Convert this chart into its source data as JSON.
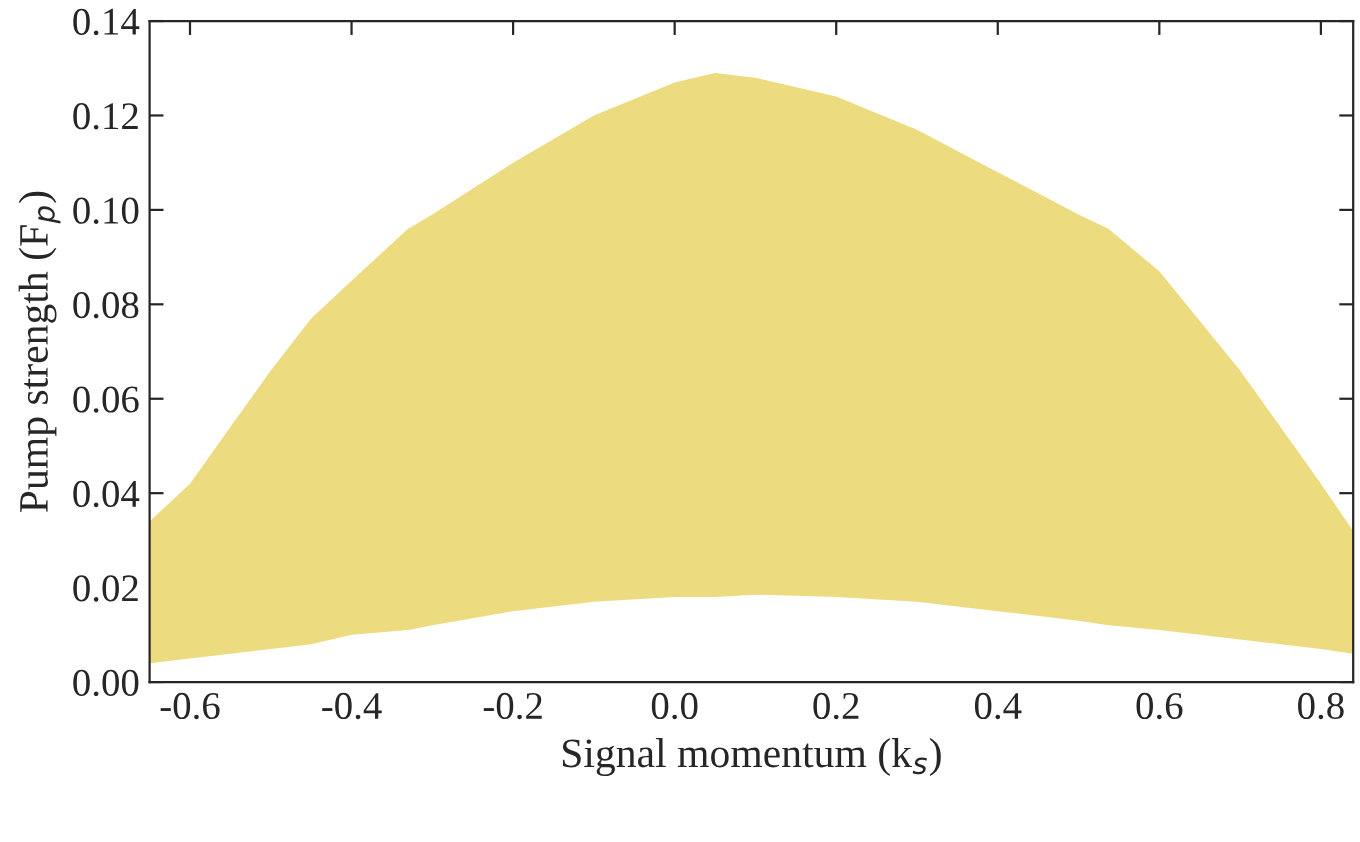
{
  "chart_data": {
    "type": "area",
    "xlabel": "Signal momentum (k$_{s}$)",
    "ylabel": "Pump strength (F$_{p}$)",
    "x": [
      -0.65,
      -0.6,
      -0.55,
      -0.5,
      -0.45,
      -0.4,
      -0.33,
      -0.3,
      -0.2,
      -0.1,
      0,
      0.05,
      0.1,
      0.2,
      0.3,
      0.4,
      0.5,
      0.537,
      0.6,
      0.7,
      0.8,
      0.84
    ],
    "stacked": true,
    "series": [
      {
        "color": "#ffffff",
        "values": [
          0.004,
          0.005,
          0.006,
          0.007,
          0.008,
          0.01,
          0.011,
          0.012,
          0.015,
          0.017,
          0.018,
          0.018,
          0.0185,
          0.018,
          0.017,
          0.015,
          0.013,
          0.012,
          0.011,
          0.009,
          0.007,
          0.006
        ]
      },
      {
        "color": "#eddb80",
        "values": [
          0.03,
          0.037,
          0.048,
          0.059,
          0.069,
          0.075,
          0.085,
          0.087,
          0.095,
          0.103,
          0.109,
          0.111,
          0.1095,
          0.106,
          0.1,
          0.093,
          0.086,
          0.084,
          0.076,
          0.057,
          0.035,
          0.026
        ]
      }
    ],
    "xlim": [
      -0.65,
      0.84
    ],
    "xticks": [
      {
        "value": -0.6,
        "label": "-0.6"
      },
      {
        "value": -0.4,
        "label": "-0.4"
      },
      {
        "value": -0.2,
        "label": "-0.2"
      },
      {
        "value": 0,
        "label": "0.0"
      },
      {
        "value": 0.2,
        "label": "0.2"
      },
      {
        "value": 0.4,
        "label": "0.4"
      },
      {
        "value": 0.6,
        "label": "0.6"
      },
      {
        "value": 0.8,
        "label": "0.8"
      }
    ],
    "ylim": [
      0,
      0.14
    ],
    "yticks": [
      {
        "value": 0,
        "label": "0.00"
      },
      {
        "value": 0.02,
        "label": "0.02"
      },
      {
        "value": 0.04,
        "label": "0.04"
      },
      {
        "value": 0.06,
        "label": "0.06"
      },
      {
        "value": 0.08,
        "label": "0.08"
      },
      {
        "value": 0.1,
        "label": "0.10"
      },
      {
        "value": 0.12,
        "label": "0.12"
      },
      {
        "value": 0.14,
        "label": "0.14"
      }
    ],
    "grid": false
  }
}
